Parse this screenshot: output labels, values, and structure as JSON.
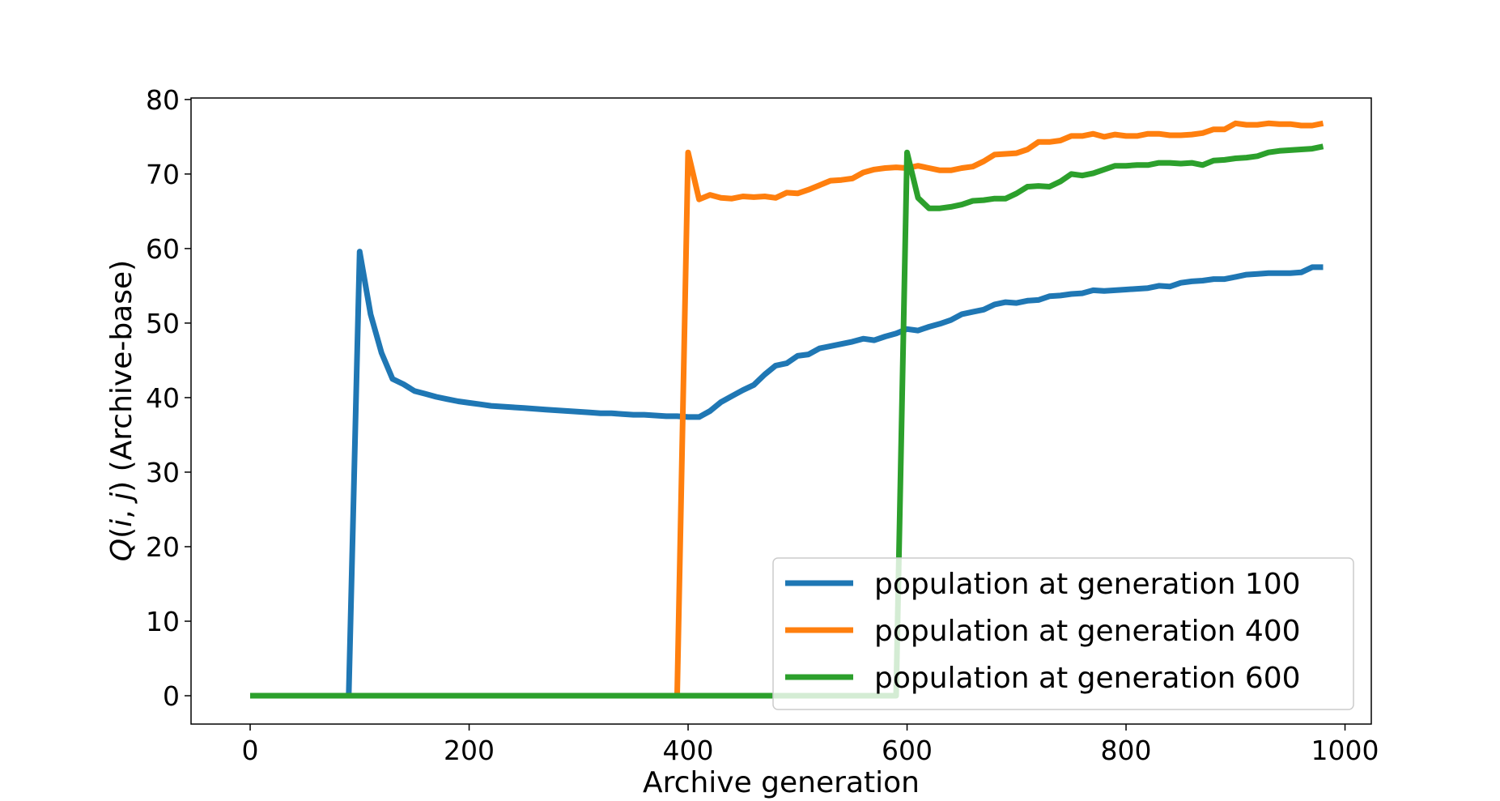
{
  "chart_data": {
    "type": "line",
    "title": "",
    "xlabel": "Archive generation",
    "ylabel": "Q(i, j) (Archive-base)",
    "ylabel_parts": {
      "q": "Q",
      "open": "(",
      "i": "i",
      "comma": ", ",
      "j": "j",
      "close": ")",
      "suffix": " (Archive-base)"
    },
    "xlim": [
      -54,
      1024
    ],
    "ylim": [
      -3.8,
      80.2
    ],
    "xticks": [
      0,
      200,
      400,
      600,
      800,
      1000
    ],
    "yticks": [
      0,
      10,
      20,
      30,
      40,
      50,
      60,
      70,
      80
    ],
    "grid": false,
    "legend_position": "bottom-right",
    "series": [
      {
        "name": "population at generation 100",
        "color": "#1f77b4",
        "x": [
          0,
          90,
          100,
          110,
          120,
          130,
          140,
          150,
          160,
          170,
          180,
          190,
          200,
          210,
          220,
          230,
          240,
          250,
          260,
          270,
          280,
          290,
          300,
          310,
          320,
          330,
          340,
          350,
          360,
          370,
          380,
          390,
          400,
          410,
          420,
          430,
          440,
          450,
          460,
          470,
          480,
          490,
          500,
          510,
          520,
          530,
          540,
          550,
          560,
          570,
          580,
          590,
          600,
          610,
          620,
          630,
          640,
          650,
          660,
          670,
          680,
          690,
          700,
          710,
          720,
          730,
          740,
          750,
          760,
          770,
          780,
          790,
          800,
          810,
          820,
          830,
          840,
          850,
          860,
          870,
          880,
          890,
          900,
          910,
          920,
          930,
          940,
          950,
          960,
          970,
          980
        ],
        "y": [
          0,
          0,
          59.6,
          51.2,
          46.0,
          42.5,
          41.8,
          40.9,
          40.5,
          40.1,
          39.8,
          39.5,
          39.3,
          39.1,
          38.9,
          38.8,
          38.7,
          38.6,
          38.5,
          38.4,
          38.3,
          38.2,
          38.1,
          38.0,
          37.9,
          37.9,
          37.8,
          37.7,
          37.7,
          37.6,
          37.5,
          37.5,
          37.4,
          37.4,
          38.2,
          39.4,
          40.2,
          41.0,
          41.7,
          43.1,
          44.3,
          44.6,
          45.6,
          45.8,
          46.6,
          46.9,
          47.2,
          47.5,
          47.9,
          47.7,
          48.2,
          48.6,
          49.2,
          49.0,
          49.5,
          49.9,
          50.4,
          51.2,
          51.5,
          51.8,
          52.5,
          52.8,
          52.7,
          53.0,
          53.1,
          53.6,
          53.7,
          53.9,
          54.0,
          54.4,
          54.3,
          54.4,
          54.5,
          54.6,
          54.7,
          55.0,
          54.9,
          55.4,
          55.6,
          55.7,
          55.9,
          55.9,
          56.2,
          56.5,
          56.6,
          56.7,
          56.7,
          56.7,
          56.8,
          57.5,
          57.5
        ]
      },
      {
        "name": "population at generation 400",
        "color": "#ff7f0e",
        "x": [
          0,
          390,
          400,
          410,
          420,
          430,
          440,
          450,
          460,
          470,
          480,
          490,
          500,
          510,
          520,
          530,
          540,
          550,
          560,
          570,
          580,
          590,
          600,
          610,
          620,
          630,
          640,
          650,
          660,
          670,
          680,
          690,
          700,
          710,
          720,
          730,
          740,
          750,
          760,
          770,
          780,
          790,
          800,
          810,
          820,
          830,
          840,
          850,
          860,
          870,
          880,
          890,
          900,
          910,
          920,
          930,
          940,
          950,
          960,
          970,
          980
        ],
        "y": [
          0,
          0,
          72.9,
          66.6,
          67.2,
          66.8,
          66.7,
          67.0,
          66.9,
          67.0,
          66.8,
          67.5,
          67.4,
          67.9,
          68.5,
          69.1,
          69.2,
          69.4,
          70.2,
          70.6,
          70.8,
          70.9,
          70.8,
          71.1,
          70.8,
          70.5,
          70.5,
          70.8,
          71.0,
          71.7,
          72.6,
          72.7,
          72.8,
          73.3,
          74.3,
          74.3,
          74.5,
          75.1,
          75.1,
          75.4,
          75.0,
          75.3,
          75.1,
          75.1,
          75.4,
          75.4,
          75.2,
          75.2,
          75.3,
          75.5,
          76.0,
          76.0,
          76.8,
          76.6,
          76.6,
          76.8,
          76.7,
          76.7,
          76.5,
          76.5,
          76.8
        ]
      },
      {
        "name": "population at generation 600",
        "color": "#2ca02c",
        "x": [
          0,
          590,
          600,
          610,
          620,
          630,
          640,
          650,
          660,
          670,
          680,
          690,
          700,
          710,
          720,
          730,
          740,
          750,
          760,
          770,
          780,
          790,
          800,
          810,
          820,
          830,
          840,
          850,
          860,
          870,
          880,
          890,
          900,
          910,
          920,
          930,
          940,
          950,
          960,
          970,
          980
        ],
        "y": [
          0,
          0,
          72.9,
          66.8,
          65.4,
          65.4,
          65.6,
          65.9,
          66.4,
          66.5,
          66.7,
          66.7,
          67.4,
          68.3,
          68.4,
          68.3,
          69.0,
          70.0,
          69.8,
          70.1,
          70.6,
          71.1,
          71.1,
          71.2,
          71.2,
          71.5,
          71.5,
          71.4,
          71.5,
          71.2,
          71.8,
          71.9,
          72.1,
          72.2,
          72.4,
          72.9,
          73.1,
          73.2,
          73.3,
          73.4,
          73.7
        ]
      }
    ]
  }
}
